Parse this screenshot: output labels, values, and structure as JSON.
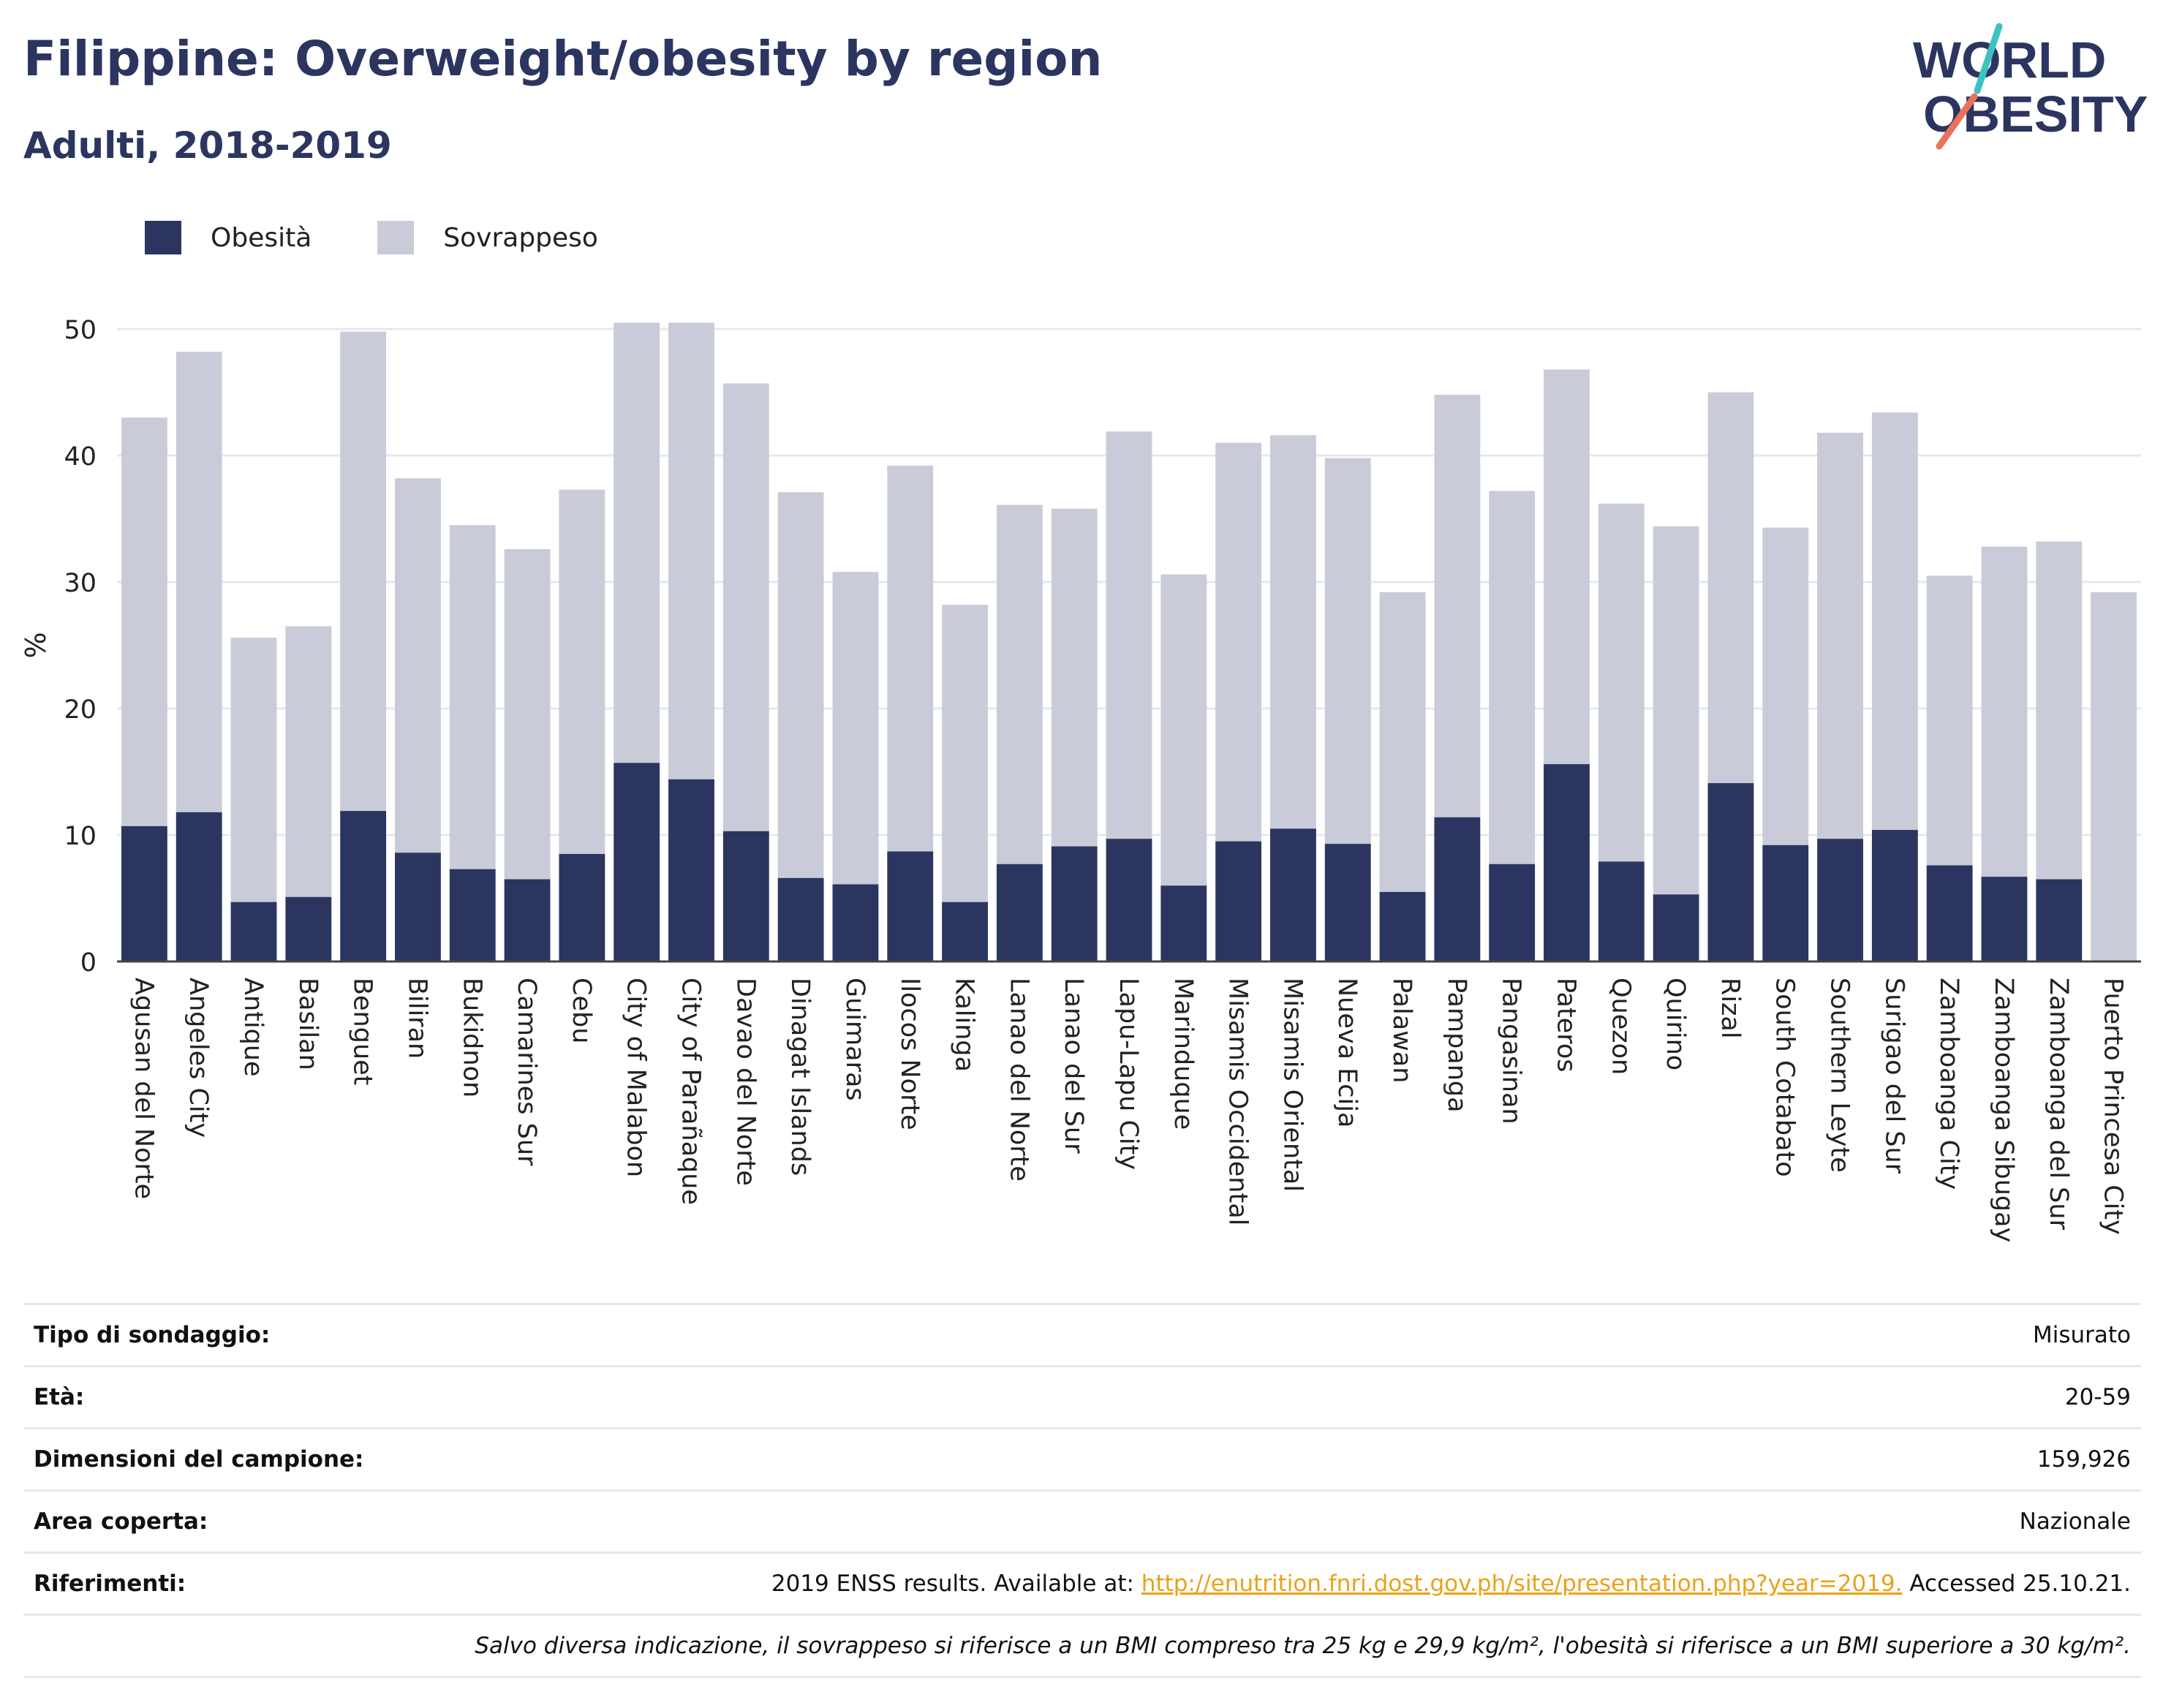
{
  "header": {
    "title": "Filippine: Overweight/obesity by region",
    "subtitle": "Adulti, 2018-2019"
  },
  "logo": {
    "line1": "WORLD",
    "line2": "OBESITY"
  },
  "legend": {
    "items": [
      {
        "label": "Obesità",
        "color": "#2b3560"
      },
      {
        "label": "Sovrappeso",
        "color": "#c9ccd8"
      }
    ]
  },
  "chart_data": {
    "type": "bar",
    "stacked": true,
    "ylabel": "%",
    "xlabel": "",
    "ylim": [
      0,
      50
    ],
    "yticks": [
      0,
      10,
      20,
      30,
      40,
      50
    ],
    "grid": true,
    "legend_position": "top-left",
    "categories": [
      "Agusan del Norte",
      "Angeles City",
      "Antique",
      "Basilan",
      "Benguet",
      "Biliran",
      "Bukidnon",
      "Camarines Sur",
      "Cebu",
      "City of Malabon",
      "City of Parañaque",
      "Davao del Norte",
      "Dinagat Islands",
      "Guimaras",
      "Ilocos Norte",
      "Kalinga",
      "Lanao del Norte",
      "Lanao del Sur",
      "Lapu-Lapu City",
      "Marinduque",
      "Misamis Occidental",
      "Misamis Oriental",
      "Nueva Ecija",
      "Palawan",
      "Pampanga",
      "Pangasinan",
      "Pateros",
      "Quezon",
      "Quirino",
      "Rizal",
      "South Cotabato",
      "Southern Leyte",
      "Surigao del Sur",
      "Zamboanga City",
      "Zamboanga Sibugay",
      "Zamboanga del Sur",
      "Puerto Princesa City"
    ],
    "series": [
      {
        "name": "Obesità",
        "color": "#2b3560",
        "values": [
          10.7,
          11.8,
          4.7,
          5.1,
          11.9,
          8.6,
          7.3,
          6.5,
          8.5,
          15.7,
          14.4,
          10.3,
          6.6,
          6.1,
          8.7,
          4.7,
          7.7,
          9.1,
          9.7,
          6.0,
          9.5,
          10.5,
          9.3,
          5.5,
          11.4,
          7.7,
          15.6,
          7.9,
          5.3,
          14.1,
          9.2,
          9.7,
          10.4,
          7.6,
          6.7,
          6.5,
          0
        ]
      },
      {
        "name": "Sovrappeso",
        "color": "#c9ccd8",
        "values": [
          32.3,
          36.4,
          20.9,
          21.4,
          37.9,
          29.6,
          27.2,
          26.1,
          28.8,
          34.8,
          36.1,
          35.4,
          30.5,
          24.7,
          30.5,
          23.5,
          28.4,
          26.7,
          32.2,
          24.6,
          31.5,
          31.1,
          30.5,
          23.7,
          33.4,
          29.5,
          31.2,
          28.3,
          29.1,
          30.9,
          25.1,
          32.1,
          33.0,
          22.9,
          26.1,
          26.7,
          29.2
        ]
      }
    ]
  },
  "info": {
    "rows": [
      {
        "label": "Tipo di sondaggio:",
        "value": "Misurato"
      },
      {
        "label": "Età:",
        "value": "20-59"
      },
      {
        "label": "Dimensioni del campione:",
        "value": "159,926"
      },
      {
        "label": "Area coperta:",
        "value": "Nazionale"
      }
    ],
    "references": {
      "label": "Riferimenti:",
      "prefix": "2019 ENSS results. Available at: ",
      "link": "http://enutrition.fnri.dost.gov.ph/site/presentation.php?year=2019.",
      "suffix": " Accessed 25.10.21."
    },
    "note": "Salvo diversa indicazione, il sovrappeso si riferisce a un BMI compreso tra 25 kg e 29,9 kg/m², l'obesità si riferisce a un BMI superiore a 30 kg/m²."
  }
}
